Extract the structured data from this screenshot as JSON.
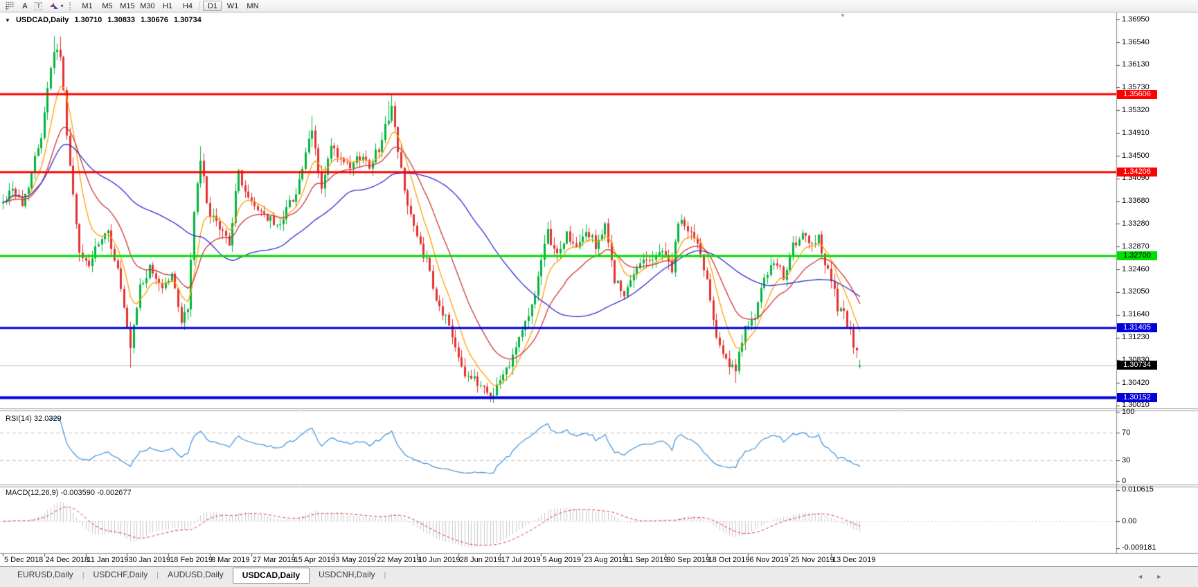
{
  "toolbar": {
    "tools": {
      "fib_glyph": "F",
      "text_glyph": "A",
      "label_glyph": "T",
      "caret_glyph": "▾"
    },
    "timeframes": [
      {
        "label": "M1",
        "active": false
      },
      {
        "label": "M5",
        "active": false
      },
      {
        "label": "M15",
        "active": false
      },
      {
        "label": "M30",
        "active": false
      },
      {
        "label": "H1",
        "active": false
      },
      {
        "label": "H4",
        "active": false
      },
      {
        "label": "D1",
        "active": true
      },
      {
        "label": "W1",
        "active": false
      },
      {
        "label": "MN",
        "active": false
      }
    ],
    "timeframe_separator_index": 6
  },
  "chart_header": {
    "expand_icon": "▼",
    "symbol": "USDCAD,Daily",
    "open": "1.30710",
    "high": "1.30833",
    "low": "1.30676",
    "close": "1.30734"
  },
  "shift_marker_glyph": "▼",
  "rsi_panel": {
    "label": "RSI(14) 32.0329"
  },
  "macd_panel": {
    "label": "MACD(12,26,9) -0.003590 -0.002677"
  },
  "bottom_tabs": {
    "tabs": [
      {
        "label": "EURUSD,Daily",
        "active": false
      },
      {
        "label": "USDCHF,Daily",
        "active": false
      },
      {
        "label": "AUDUSD,Daily",
        "active": false
      },
      {
        "label": "USDCAD,Daily",
        "active": true
      },
      {
        "label": "USDCNH,Daily",
        "active": false
      }
    ],
    "scroll_left_glyph": "◄",
    "scroll_right_glyph": "►"
  },
  "chart_data": {
    "type": "candlestick",
    "title": "USDCAD,Daily",
    "current_ohlc": {
      "open": 1.3071,
      "high": 1.30833,
      "low": 1.30676,
      "close": 1.30734
    },
    "y_axis": {
      "min": 1.2996,
      "max": 1.3705,
      "ticks": [
        "1.36950",
        "1.36540",
        "1.36130",
        "1.35730",
        "1.35320",
        "1.34910",
        "1.34500",
        "1.34090",
        "1.33680",
        "1.33280",
        "1.32870",
        "1.32460",
        "1.32050",
        "1.31640",
        "1.31230",
        "1.30830",
        "1.30420",
        "1.30010"
      ]
    },
    "x_axis": {
      "candles_per_label": 13,
      "labels": [
        "5 Dec 2018",
        "24 Dec 2018",
        "11 Jan 2019",
        "30 Jan 2019",
        "18 Feb 2019",
        "8 Mar 2019",
        "27 Mar 2019",
        "15 Apr 2019",
        "3 May 2019",
        "22 May 2019",
        "10 Jun 2019",
        "28 Jun 2019",
        "17 Jul 2019",
        "5 Aug 2019",
        "23 Aug 2019",
        "11 Sep 2019",
        "30 Sep 2019",
        "18 Oct 2019",
        "6 Nov 2019",
        "25 Nov 2019",
        "13 Dec 2019"
      ]
    },
    "candles": {
      "count": 270,
      "bull_color": "#00b43c",
      "bear_color": "#e53030",
      "noise": 0.0009,
      "seed": 42,
      "close_anchors": [
        [
          0,
          1.3365
        ],
        [
          3,
          1.3395
        ],
        [
          6,
          1.336
        ],
        [
          9,
          1.342
        ],
        [
          12,
          1.349
        ],
        [
          14,
          1.3575
        ],
        [
          16,
          1.364
        ],
        [
          18,
          1.3635
        ],
        [
          19,
          1.356
        ],
        [
          21,
          1.343
        ],
        [
          24,
          1.327
        ],
        [
          27,
          1.3255
        ],
        [
          30,
          1.329
        ],
        [
          33,
          1.331
        ],
        [
          36,
          1.3245
        ],
        [
          39,
          1.3135
        ],
        [
          40,
          1.31
        ],
        [
          43,
          1.3215
        ],
        [
          46,
          1.3245
        ],
        [
          50,
          1.3215
        ],
        [
          53,
          1.3235
        ],
        [
          56,
          1.3155
        ],
        [
          58,
          1.3175
        ],
        [
          60,
          1.335
        ],
        [
          62,
          1.344
        ],
        [
          65,
          1.334
        ],
        [
          68,
          1.332
        ],
        [
          71,
          1.3295
        ],
        [
          74,
          1.342
        ],
        [
          77,
          1.337
        ],
        [
          80,
          1.3355
        ],
        [
          83,
          1.334
        ],
        [
          86,
          1.332
        ],
        [
          89,
          1.3355
        ],
        [
          92,
          1.3385
        ],
        [
          95,
          1.345
        ],
        [
          97,
          1.3495
        ],
        [
          100,
          1.339
        ],
        [
          103,
          1.3465
        ],
        [
          106,
          1.344
        ],
        [
          109,
          1.3425
        ],
        [
          112,
          1.345
        ],
        [
          115,
          1.3435
        ],
        [
          118,
          1.3465
        ],
        [
          120,
          1.35
        ],
        [
          122,
          1.354
        ],
        [
          124,
          1.3455
        ],
        [
          127,
          1.3365
        ],
        [
          130,
          1.33
        ],
        [
          133,
          1.326
        ],
        [
          136,
          1.3185
        ],
        [
          139,
          1.316
        ],
        [
          142,
          1.311
        ],
        [
          145,
          1.306
        ],
        [
          148,
          1.3045
        ],
        [
          151,
          1.3035
        ],
        [
          153,
          1.3018
        ],
        [
          156,
          1.3045
        ],
        [
          159,
          1.308
        ],
        [
          162,
          1.3125
        ],
        [
          165,
          1.316
        ],
        [
          168,
          1.323
        ],
        [
          171,
          1.331
        ],
        [
          174,
          1.327
        ],
        [
          177,
          1.331
        ],
        [
          180,
          1.328
        ],
        [
          183,
          1.3315
        ],
        [
          186,
          1.329
        ],
        [
          189,
          1.332
        ],
        [
          192,
          1.323
        ],
        [
          195,
          1.3195
        ],
        [
          198,
          1.3235
        ],
        [
          201,
          1.327
        ],
        [
          204,
          1.326
        ],
        [
          207,
          1.3285
        ],
        [
          210,
          1.3245
        ],
        [
          212,
          1.333
        ],
        [
          215,
          1.332
        ],
        [
          218,
          1.329
        ],
        [
          221,
          1.323
        ],
        [
          224,
          1.313
        ],
        [
          227,
          1.308
        ],
        [
          230,
          1.306
        ],
        [
          233,
          1.315
        ],
        [
          236,
          1.3155
        ],
        [
          239,
          1.323
        ],
        [
          242,
          1.3255
        ],
        [
          245,
          1.3235
        ],
        [
          248,
          1.3285
        ],
        [
          251,
          1.3305
        ],
        [
          254,
          1.3285
        ],
        [
          256,
          1.331
        ],
        [
          258,
          1.3255
        ],
        [
          260,
          1.323
        ],
        [
          262,
          1.3175
        ],
        [
          264,
          1.3165
        ],
        [
          266,
          1.313
        ],
        [
          268,
          1.3095
        ],
        [
          269,
          1.30734
        ]
      ],
      "spikes": [
        {
          "i": 16,
          "high": 1.3665
        },
        {
          "i": 18,
          "high": 1.3664
        },
        {
          "i": 40,
          "low": 1.3069
        },
        {
          "i": 62,
          "high": 1.3467
        },
        {
          "i": 97,
          "high": 1.3521
        },
        {
          "i": 121,
          "high": 1.3548
        },
        {
          "i": 122,
          "high": 1.35606
        },
        {
          "i": 153,
          "low": 1.30152
        },
        {
          "i": 154,
          "low": 1.302
        },
        {
          "i": 230,
          "low": 1.3042
        }
      ]
    },
    "moving_averages": [
      {
        "name": "fast",
        "type": "ema",
        "period": 8,
        "color": "#ff9f00"
      },
      {
        "name": "medium",
        "type": "ema",
        "period": 20,
        "color": "#cc3333"
      },
      {
        "name": "slow",
        "type": "sma",
        "period": 50,
        "color": "#2b2bd0"
      }
    ],
    "horizontal_levels": [
      {
        "price": 1.35606,
        "line_color": "#ff0000",
        "line_width": 3,
        "label": "1.35606",
        "label_bg": "#ff0000",
        "label_fg": "#ffffff"
      },
      {
        "price": 1.34206,
        "line_color": "#ff0000",
        "line_width": 3,
        "label": "1.34206",
        "label_bg": "#ff0000",
        "label_fg": "#ffffff"
      },
      {
        "price": 1.327,
        "line_color": "#00dd00",
        "line_width": 3,
        "label": "1.32700",
        "label_bg": "#00dd00",
        "label_fg": "#000000"
      },
      {
        "price": 1.31405,
        "line_color": "#0000dd",
        "line_width": 3,
        "label": "1.31405",
        "label_bg": "#0000dd",
        "label_fg": "#ffffff"
      },
      {
        "price": 1.30152,
        "line_color": "#0000dd",
        "line_width": 4,
        "label": "1.30152",
        "label_bg": "#0000dd",
        "label_fg": "#ffffff"
      }
    ],
    "current_price_line": {
      "price": 1.30734,
      "line_color": "#b8b8b8",
      "label": "1.30734",
      "label_bg": "#000000",
      "label_fg": "#ffffff"
    },
    "rsi": {
      "period": 14,
      "last_value": 32.0329,
      "color": "#3c8fd9",
      "ticks": [
        {
          "label": "100",
          "value": 100,
          "dashed": false
        },
        {
          "label": "70",
          "value": 70,
          "dashed": true
        },
        {
          "label": "30",
          "value": 30,
          "dashed": true
        },
        {
          "label": "0",
          "value": 0,
          "dashed": false
        }
      ]
    },
    "macd": {
      "fast": 12,
      "slow": 26,
      "signal_period": 9,
      "macd_value": -0.00359,
      "signal_value": -0.002677,
      "histogram_color": "#c8c8c8",
      "signal_color": "#dd3333",
      "ticks": [
        {
          "label": "0.010615",
          "value": 0.010615
        },
        {
          "label": "0.00",
          "value": 0
        },
        {
          "label": "-0.009181",
          "value": -0.009181
        }
      ]
    }
  }
}
